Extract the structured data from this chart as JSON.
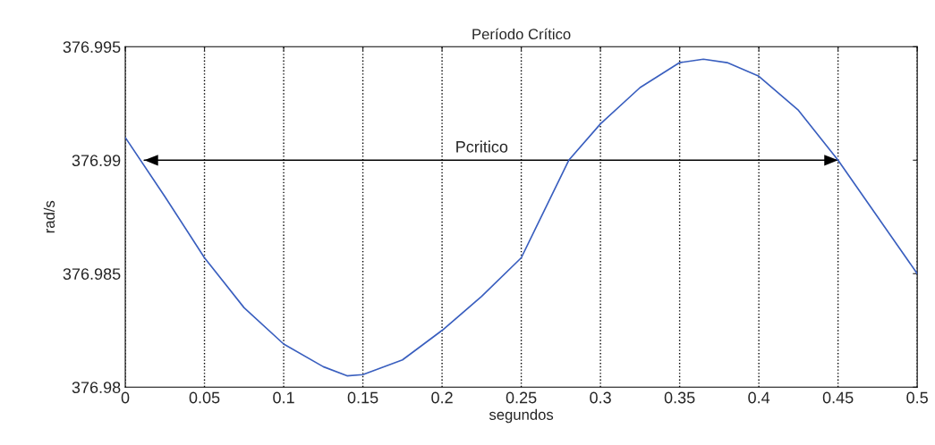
{
  "chart_data": {
    "type": "line",
    "title": "Período Crítico",
    "xlabel": "segundos",
    "ylabel": "rad/s",
    "xlim": [
      0,
      0.5
    ],
    "ylim": [
      376.98,
      376.995
    ],
    "xticks": [
      0,
      0.05,
      0.1,
      0.15,
      0.2,
      0.25,
      0.3,
      0.35,
      0.4,
      0.45,
      0.5
    ],
    "yticks": [
      376.98,
      376.985,
      376.99,
      376.995
    ],
    "grid": "x",
    "series": [
      {
        "color": "#3a5fbf",
        "x": [
          0,
          0.025,
          0.05,
          0.075,
          0.1,
          0.125,
          0.14,
          0.15,
          0.175,
          0.2,
          0.225,
          0.25,
          0.28,
          0.3,
          0.325,
          0.35,
          0.365,
          0.38,
          0.4,
          0.425,
          0.45,
          0.475,
          0.5
        ],
        "values": [
          376.991,
          376.9884,
          376.9857,
          376.9835,
          376.9819,
          376.9809,
          376.9805,
          376.98055,
          376.9812,
          376.9825,
          376.984,
          376.9857,
          376.99,
          376.9916,
          376.9932,
          376.9943,
          376.99445,
          376.9943,
          376.9937,
          376.9922,
          376.99,
          376.9875,
          376.985
        ]
      },
      {
        "type": "line",
        "color": "#000000",
        "x": [
          0.012,
          0.45
        ],
        "values": [
          376.99,
          376.99
        ]
      }
    ],
    "annotations": [
      "Pcritico"
    ]
  }
}
